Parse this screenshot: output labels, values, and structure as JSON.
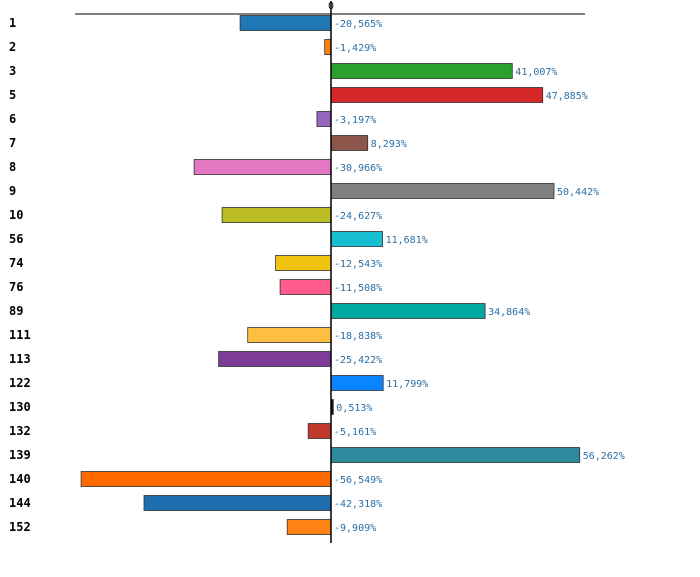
{
  "chart_data": {
    "type": "bar",
    "orientation": "horizontal",
    "title": "",
    "xlabel": "",
    "ylabel": "",
    "xlim": [
      -60,
      60
    ],
    "grid": false,
    "legend": "none",
    "zero_tick_label": "0",
    "categories": [
      "1",
      "2",
      "3",
      "5",
      "6",
      "7",
      "8",
      "9",
      "10",
      "56",
      "74",
      "76",
      "89",
      "111",
      "113",
      "122",
      "130",
      "132",
      "139",
      "140",
      "144",
      "152"
    ],
    "values": [
      -20.565,
      -1.429,
      41.007,
      47.885,
      -3.197,
      8.293,
      -30.966,
      50.442,
      -24.627,
      11.681,
      -12.543,
      -11.508,
      34.864,
      -18.838,
      -25.422,
      11.799,
      0.513,
      -5.161,
      56.262,
      -56.549,
      -42.318,
      -9.909
    ],
    "value_labels": [
      "-20,565%",
      "-1,429%",
      "41,007%",
      "47,885%",
      "-3,197%",
      "8,293%",
      "-30,966%",
      "50,442%",
      "-24,627%",
      "11,681%",
      "-12,543%",
      "-11,508%",
      "34,864%",
      "-18,838%",
      "-25,422%",
      "11,799%",
      "0,513%",
      "-5,161%",
      "56,262%",
      "-56,549%",
      "-42,318%",
      "-9,909%"
    ],
    "colors": [
      "#1f77b4",
      "#ff7f0e",
      "#2ca02c",
      "#d62728",
      "#9467bd",
      "#8c564b",
      "#e377c2",
      "#7f7f7f",
      "#bcbd22",
      "#17becf",
      "#f1c40f",
      "#ff5b8d",
      "#00a8a0",
      "#fdbf3f",
      "#7d3c98",
      "#0a84ff",
      "#111111",
      "#c0392b",
      "#2e8b9e",
      "#ff6a00",
      "#1f6fb0",
      "#ff8214"
    ]
  }
}
